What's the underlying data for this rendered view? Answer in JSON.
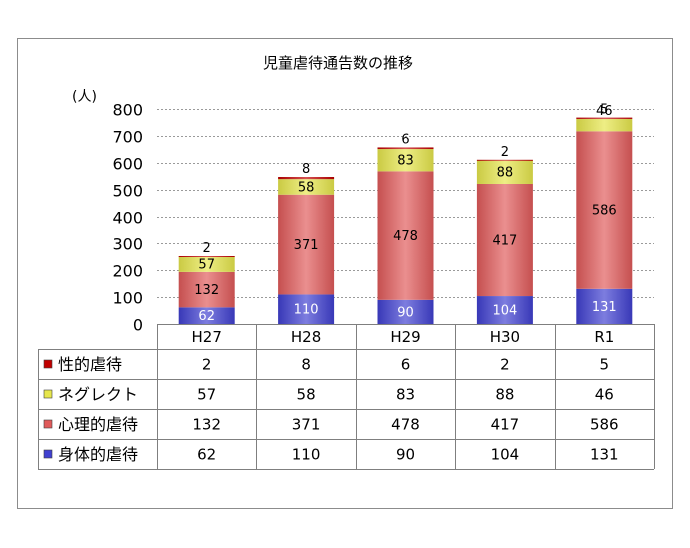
{
  "chart_data": {
    "type": "bar",
    "stacked": true,
    "title": "児童虐待通告数の推移",
    "ylabel": "(人)",
    "categories": [
      "H27",
      "H28",
      "H29",
      "H30",
      "R1"
    ],
    "ylim": [
      0,
      800
    ],
    "yticks": [
      0,
      100,
      200,
      300,
      400,
      500,
      600,
      700,
      800
    ],
    "grid": true,
    "data_labels": true,
    "legend": "data-table",
    "series": [
      {
        "name": "性的虐待",
        "color": "#C00000",
        "values": [
          2,
          8,
          6,
          2,
          5
        ]
      },
      {
        "name": "ネグレクト",
        "color": "#E6E64C",
        "values": [
          57,
          58,
          83,
          88,
          46
        ]
      },
      {
        "name": "心理的虐待",
        "color": "#E05A5A",
        "values": [
          132,
          371,
          478,
          417,
          586
        ]
      },
      {
        "name": "身体的虐待",
        "color": "#4040D0",
        "values": [
          62,
          110,
          90,
          104,
          131
        ]
      }
    ]
  }
}
